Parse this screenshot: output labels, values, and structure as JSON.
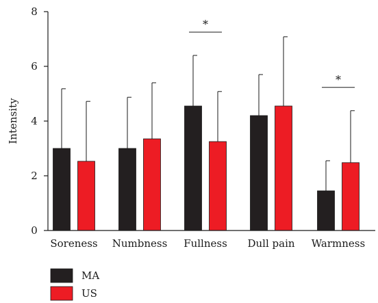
{
  "chart_data": {
    "type": "bar",
    "title": "",
    "xlabel": "",
    "ylabel": "Intensity",
    "ylim": [
      0,
      8
    ],
    "yticks": [
      0,
      2,
      4,
      6,
      8
    ],
    "grid": false,
    "legend_position": "bottom-left",
    "categories": [
      "Soreness",
      "Numbness",
      "Fullness",
      "Dull pain",
      "Warmness"
    ],
    "series": [
      {
        "name": "MA",
        "color": "#231f20",
        "values": [
          3.0,
          3.0,
          4.55,
          4.2,
          1.45
        ],
        "error_upper": [
          5.18,
          4.87,
          6.4,
          5.7,
          2.55
        ]
      },
      {
        "name": "US",
        "color": "#ed1c24",
        "values": [
          2.53,
          3.35,
          3.25,
          4.55,
          2.48
        ],
        "error_upper": [
          4.72,
          5.4,
          5.08,
          7.08,
          4.38
        ]
      }
    ],
    "annotations": [
      {
        "category": "Fullness",
        "label": "*"
      },
      {
        "category": "Warmness",
        "label": "*"
      }
    ]
  }
}
